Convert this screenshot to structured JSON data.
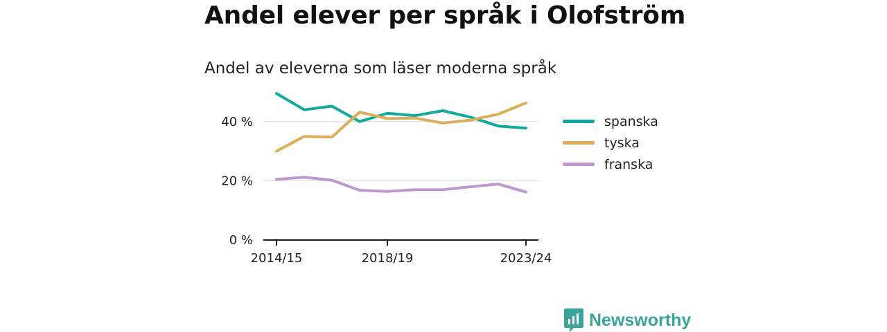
{
  "title": "Andel elever per språk i Olofström",
  "subtitle": "Andel av eleverna som läser moderna språk",
  "brand": {
    "name": "Newsworthy",
    "color": "#3aa39a"
  },
  "chart_data": {
    "type": "line",
    "x": [
      "2014/15",
      "2015/16",
      "2016/17",
      "2017/18",
      "2018/19",
      "2019/20",
      "2020/21",
      "2021/22",
      "2022/23",
      "2023/24"
    ],
    "xticks": [
      "2014/15",
      "2018/19",
      "2023/24"
    ],
    "yticks": [
      0,
      20,
      40
    ],
    "ytick_labels": [
      "0 %",
      "20 %",
      "40 %"
    ],
    "ylim": [
      0,
      50
    ],
    "grid": true,
    "legend_position": "right",
    "series": [
      {
        "name": "spanska",
        "color": "#13a89e",
        "values": [
          49.5,
          44,
          45.2,
          40,
          42.8,
          42,
          43.7,
          41.5,
          38.5,
          37.8
        ]
      },
      {
        "name": "tyska",
        "color": "#dbae59",
        "values": [
          30,
          35,
          34.8,
          43.2,
          41,
          41.2,
          39.5,
          40.5,
          42.5,
          46.3
        ]
      },
      {
        "name": "franska",
        "color": "#c097cf",
        "values": [
          20.5,
          21.2,
          20.2,
          16.8,
          16.4,
          17,
          17,
          18,
          18.9,
          16.2
        ]
      }
    ]
  }
}
